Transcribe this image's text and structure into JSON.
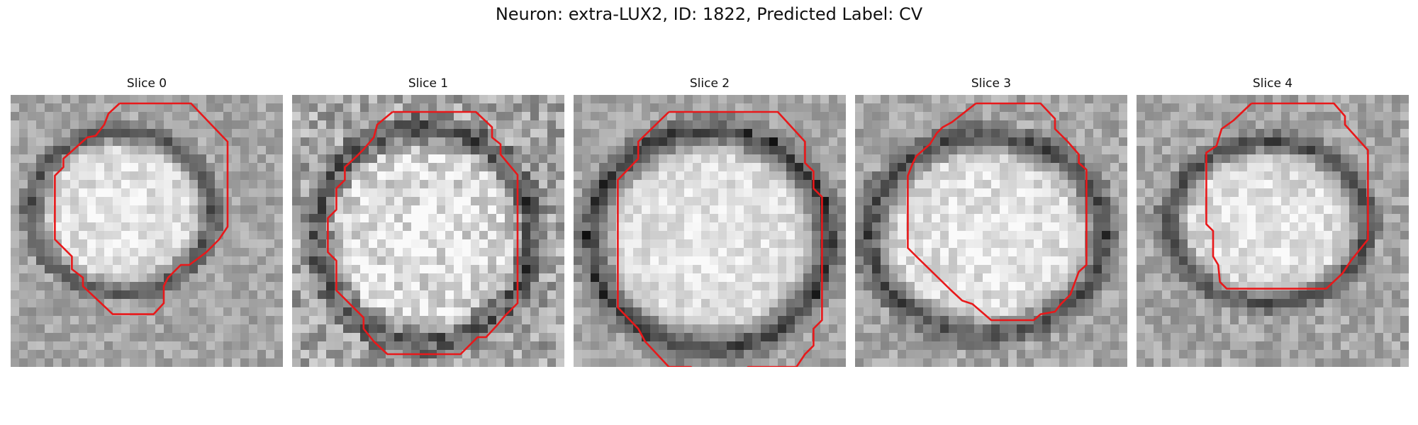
{
  "figure": {
    "title": "Neuron: extra-LUX2, ID: 1822, Predicted Label: CV"
  },
  "panels": [
    {
      "title": "Slice 0"
    },
    {
      "title": "Slice 1"
    },
    {
      "title": "Slice 2"
    },
    {
      "title": "Slice 3"
    },
    {
      "title": "Slice 4"
    }
  ],
  "colors": {
    "contour": "#e8181a",
    "background": "#ffffff"
  }
}
